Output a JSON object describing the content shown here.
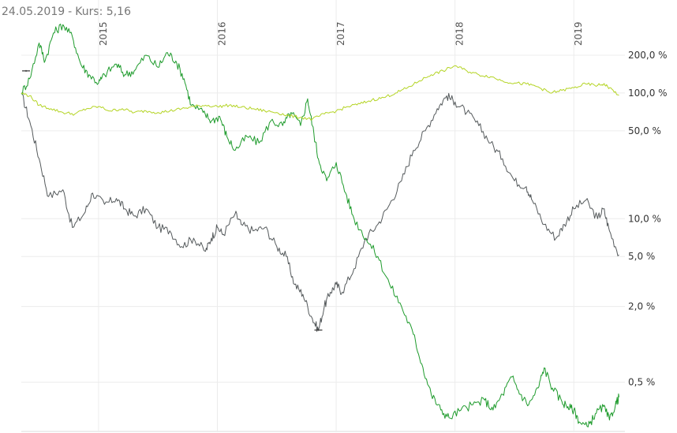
{
  "header": {
    "date": "24.05.2019",
    "separator": "-",
    "price_label": "Kurs: 5,16"
  },
  "chart_data": {
    "type": "line",
    "title": "24.05.2019 - Kurs: 5,16",
    "yscale": "log",
    "x_range": [
      2014.35,
      2019.43
    ],
    "ylim_percent": [
      0.2,
      400
    ],
    "x_ticks": [
      {
        "label": "2015",
        "x": 2015.0
      },
      {
        "label": "2016",
        "x": 2016.0
      },
      {
        "label": "2017",
        "x": 2017.0
      },
      {
        "label": "2018",
        "x": 2018.0
      },
      {
        "label": "2019",
        "x": 2019.0
      }
    ],
    "y_ticks": [
      {
        "label": "200,0 %",
        "value": 200
      },
      {
        "label": "100,0 %",
        "value": 100
      },
      {
        "label": "50,0 %",
        "value": 50
      },
      {
        "label": "10,0 %",
        "value": 10
      },
      {
        "label": "5,0 %",
        "value": 5
      },
      {
        "label": "2,0 %",
        "value": 2
      },
      {
        "label": "0,5 %",
        "value": 0.5
      }
    ],
    "grid": true,
    "series": [
      {
        "color": "#555a5c",
        "points": [
          [
            2014.35,
            100
          ],
          [
            2014.42,
            60
          ],
          [
            2014.5,
            30
          ],
          [
            2014.58,
            15
          ],
          [
            2014.7,
            17
          ],
          [
            2014.78,
            8.5
          ],
          [
            2014.88,
            11
          ],
          [
            2014.95,
            16
          ],
          [
            2015.05,
            13
          ],
          [
            2015.15,
            14.5
          ],
          [
            2015.22,
            12
          ],
          [
            2015.3,
            10.5
          ],
          [
            2015.4,
            12
          ],
          [
            2015.5,
            8.5
          ],
          [
            2015.6,
            8
          ],
          [
            2015.7,
            6
          ],
          [
            2015.8,
            7
          ],
          [
            2015.9,
            5.5
          ],
          [
            2015.95,
            7
          ],
          [
            2016.0,
            8.5
          ],
          [
            2016.05,
            7.5
          ],
          [
            2016.15,
            11
          ],
          [
            2016.2,
            9
          ],
          [
            2016.3,
            8
          ],
          [
            2016.4,
            8.5
          ],
          [
            2016.5,
            6
          ],
          [
            2016.58,
            5
          ],
          [
            2016.65,
            3
          ],
          [
            2016.72,
            2.5
          ],
          [
            2016.8,
            1.6
          ],
          [
            2016.85,
            1.3
          ],
          [
            2016.9,
            2
          ],
          [
            2016.95,
            2.6
          ],
          [
            2017.0,
            3
          ],
          [
            2017.05,
            2.6
          ],
          [
            2017.15,
            4
          ],
          [
            2017.25,
            7
          ],
          [
            2017.35,
            9
          ],
          [
            2017.45,
            13
          ],
          [
            2017.55,
            20
          ],
          [
            2017.65,
            35
          ],
          [
            2017.75,
            50
          ],
          [
            2017.85,
            75
          ],
          [
            2017.93,
            95
          ],
          [
            2018.0,
            85
          ],
          [
            2018.1,
            70
          ],
          [
            2018.2,
            55
          ],
          [
            2018.3,
            40
          ],
          [
            2018.4,
            30
          ],
          [
            2018.5,
            20
          ],
          [
            2018.6,
            18
          ],
          [
            2018.65,
            14
          ],
          [
            2018.75,
            9
          ],
          [
            2018.85,
            7
          ],
          [
            2018.92,
            9
          ],
          [
            2019.0,
            12
          ],
          [
            2019.1,
            14
          ],
          [
            2019.2,
            10
          ],
          [
            2019.25,
            12
          ],
          [
            2019.3,
            8
          ],
          [
            2019.38,
            5.16
          ]
        ]
      },
      {
        "color": "#1e9b2c",
        "points": [
          [
            2014.35,
            100
          ],
          [
            2014.42,
            130
          ],
          [
            2014.5,
            250
          ],
          [
            2014.55,
            180
          ],
          [
            2014.62,
            300
          ],
          [
            2014.7,
            350
          ],
          [
            2014.78,
            280
          ],
          [
            2014.85,
            170
          ],
          [
            2014.92,
            140
          ],
          [
            2015.0,
            120
          ],
          [
            2015.05,
            140
          ],
          [
            2015.15,
            170
          ],
          [
            2015.22,
            140
          ],
          [
            2015.3,
            150
          ],
          [
            2015.4,
            200
          ],
          [
            2015.5,
            160
          ],
          [
            2015.58,
            210
          ],
          [
            2015.65,
            180
          ],
          [
            2015.72,
            130
          ],
          [
            2015.78,
            80
          ],
          [
            2015.88,
            70
          ],
          [
            2015.95,
            60
          ],
          [
            2016.02,
            65
          ],
          [
            2016.08,
            45
          ],
          [
            2016.15,
            35
          ],
          [
            2016.25,
            45
          ],
          [
            2016.35,
            40
          ],
          [
            2016.45,
            60
          ],
          [
            2016.55,
            55
          ],
          [
            2016.62,
            70
          ],
          [
            2016.7,
            55
          ],
          [
            2016.76,
            90
          ],
          [
            2016.8,
            55
          ],
          [
            2016.85,
            30
          ],
          [
            2016.92,
            20
          ],
          [
            2017.0,
            28
          ],
          [
            2017.08,
            16
          ],
          [
            2017.15,
            10
          ],
          [
            2017.25,
            7
          ],
          [
            2017.35,
            5
          ],
          [
            2017.45,
            3
          ],
          [
            2017.55,
            2
          ],
          [
            2017.65,
            1.2
          ],
          [
            2017.72,
            0.7
          ],
          [
            2017.8,
            0.4
          ],
          [
            2017.88,
            0.3
          ],
          [
            2017.95,
            0.26
          ],
          [
            2018.05,
            0.3
          ],
          [
            2018.15,
            0.33
          ],
          [
            2018.25,
            0.36
          ],
          [
            2018.32,
            0.3
          ],
          [
            2018.4,
            0.4
          ],
          [
            2018.48,
            0.55
          ],
          [
            2018.55,
            0.4
          ],
          [
            2018.62,
            0.33
          ],
          [
            2018.7,
            0.45
          ],
          [
            2018.75,
            0.65
          ],
          [
            2018.82,
            0.45
          ],
          [
            2018.9,
            0.35
          ],
          [
            2018.95,
            0.32
          ],
          [
            2019.0,
            0.3
          ],
          [
            2019.05,
            0.24
          ],
          [
            2019.12,
            0.22
          ],
          [
            2019.18,
            0.28
          ],
          [
            2019.25,
            0.32
          ],
          [
            2019.3,
            0.25
          ],
          [
            2019.35,
            0.33
          ],
          [
            2019.38,
            0.38
          ]
        ]
      },
      {
        "color": "#b4d424",
        "points": [
          [
            2014.35,
            100
          ],
          [
            2014.42,
            95
          ],
          [
            2014.5,
            80
          ],
          [
            2014.6,
            75
          ],
          [
            2014.7,
            70
          ],
          [
            2014.8,
            68
          ],
          [
            2014.9,
            75
          ],
          [
            2015.0,
            78
          ],
          [
            2015.1,
            72
          ],
          [
            2015.2,
            75
          ],
          [
            2015.3,
            70
          ],
          [
            2015.4,
            72
          ],
          [
            2015.5,
            70
          ],
          [
            2015.6,
            72
          ],
          [
            2015.7,
            75
          ],
          [
            2015.8,
            78
          ],
          [
            2015.9,
            80
          ],
          [
            2016.0,
            78
          ],
          [
            2016.1,
            80
          ],
          [
            2016.2,
            77
          ],
          [
            2016.3,
            75
          ],
          [
            2016.4,
            72
          ],
          [
            2016.5,
            70
          ],
          [
            2016.6,
            66
          ],
          [
            2016.7,
            64
          ],
          [
            2016.8,
            62
          ],
          [
            2016.9,
            68
          ],
          [
            2017.0,
            72
          ],
          [
            2017.1,
            78
          ],
          [
            2017.2,
            82
          ],
          [
            2017.3,
            88
          ],
          [
            2017.4,
            92
          ],
          [
            2017.5,
            100
          ],
          [
            2017.6,
            110
          ],
          [
            2017.7,
            125
          ],
          [
            2017.8,
            140
          ],
          [
            2017.9,
            150
          ],
          [
            2018.0,
            165
          ],
          [
            2018.1,
            150
          ],
          [
            2018.2,
            140
          ],
          [
            2018.3,
            135
          ],
          [
            2018.4,
            125
          ],
          [
            2018.5,
            120
          ],
          [
            2018.6,
            118
          ],
          [
            2018.7,
            112
          ],
          [
            2018.8,
            100
          ],
          [
            2018.9,
            105
          ],
          [
            2019.0,
            110
          ],
          [
            2019.1,
            118
          ],
          [
            2019.2,
            115
          ],
          [
            2019.25,
            118
          ],
          [
            2019.3,
            110
          ],
          [
            2019.38,
            96
          ]
        ]
      }
    ]
  }
}
